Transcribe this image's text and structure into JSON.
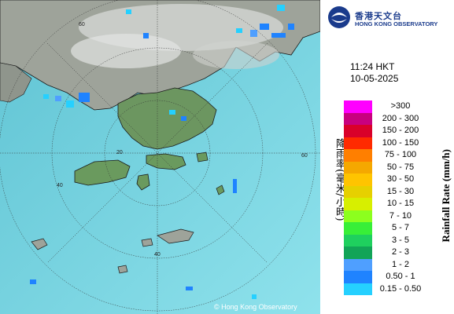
{
  "header": {
    "org_name_cn": "香港天文台",
    "org_name_en": "HONG KONG OBSERVATORY"
  },
  "timestamp": {
    "time": "11:24 HKT",
    "date": "10-05-2025"
  },
  "legend": {
    "title_cn": "降雨率(毫米/小時)",
    "title_en": "Rainfall Rate (mm/h)",
    "items": [
      {
        "label": ">300",
        "color": "#ff00ff"
      },
      {
        "label": "200 - 300",
        "color": "#c8007f"
      },
      {
        "label": "150 - 200",
        "color": "#d9002a"
      },
      {
        "label": "100 - 150",
        "color": "#ff2a00"
      },
      {
        "label": "75 - 100",
        "color": "#ff7f00"
      },
      {
        "label": "50 - 75",
        "color": "#f5a800"
      },
      {
        "label": "30 - 50",
        "color": "#ffc400"
      },
      {
        "label": "15 - 30",
        "color": "#e6d000"
      },
      {
        "label": "10 - 15",
        "color": "#d7ef00"
      },
      {
        "label": "7 - 10",
        "color": "#8cff1e"
      },
      {
        "label": "5 - 7",
        "color": "#38ef38"
      },
      {
        "label": "3 - 5",
        "color": "#1fd05e"
      },
      {
        "label": "2 - 3",
        "color": "#12a457"
      },
      {
        "label": "1 - 2",
        "color": "#4f9fff"
      },
      {
        "label": "0.50 - 1",
        "color": "#1f83ff"
      },
      {
        "label": "0.15 - 0.50",
        "color": "#25d0ff"
      }
    ]
  },
  "map": {
    "range_rings": [
      "20",
      "40",
      "60"
    ],
    "copyright": "© Hong Kong Observatory"
  }
}
